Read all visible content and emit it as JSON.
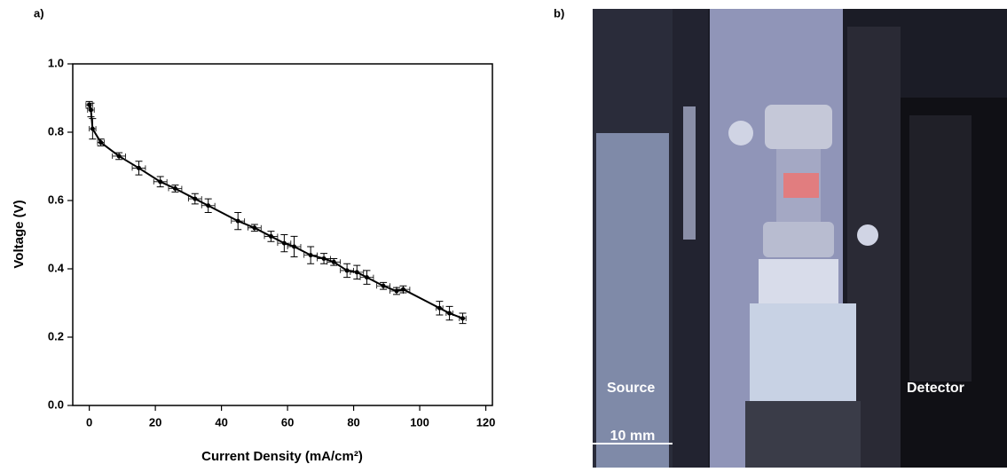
{
  "panel_labels": [
    "a)",
    "b)"
  ],
  "chart_data": {
    "type": "errorbar-line",
    "xlabel": "Current Density (mA/cm²)",
    "ylabel": "Voltage (V)",
    "x": [
      0,
      0.5,
      1,
      3.5,
      9,
      15,
      21.5,
      26,
      32,
      36,
      45,
      50,
      55,
      59,
      62,
      67,
      71,
      74,
      78,
      81,
      84,
      89,
      93,
      95,
      106,
      109,
      113
    ],
    "values": [
      0.88,
      0.865,
      0.81,
      0.77,
      0.73,
      0.695,
      0.655,
      0.635,
      0.605,
      0.585,
      0.54,
      0.52,
      0.495,
      0.475,
      0.465,
      0.44,
      0.43,
      0.42,
      0.395,
      0.39,
      0.375,
      0.35,
      0.335,
      0.34,
      0.285,
      0.27,
      0.255
    ],
    "y_errors": [
      0.01,
      0.02,
      0.03,
      0.01,
      0.01,
      0.02,
      0.015,
      0.01,
      0.015,
      0.02,
      0.025,
      0.01,
      0.015,
      0.025,
      0.03,
      0.025,
      0.015,
      0.01,
      0.02,
      0.02,
      0.02,
      0.01,
      0.01,
      0.01,
      0.02,
      0.02,
      0.015
    ],
    "x_errors": [
      1,
      1,
      1,
      1,
      2,
      2,
      2,
      2,
      2,
      2,
      2,
      2,
      2,
      2,
      2,
      2,
      2,
      2,
      2,
      2,
      2,
      2,
      2,
      2,
      1,
      1,
      1
    ],
    "color": "#000000",
    "xlim": [
      -5,
      122
    ],
    "ylim": [
      0,
      1
    ],
    "xticks": [
      0,
      20,
      40,
      60,
      80,
      100,
      120
    ],
    "yticks": [
      {
        "value": 0,
        "label": "0.0"
      },
      0.2,
      0.4,
      0.6,
      0.8,
      {
        "value": 1,
        "label": "1.0"
      }
    ]
  },
  "photo": {
    "source_label": "Source",
    "detector_label": "Detector",
    "scale_label": "10 mm"
  }
}
